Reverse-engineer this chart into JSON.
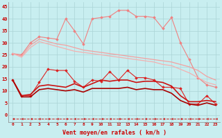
{
  "background_color": "#c8eef0",
  "grid_color": "#b0d8da",
  "xlabel": "Vent moyen/en rafales ( km/h )",
  "x_ticks": [
    0,
    1,
    2,
    3,
    4,
    5,
    6,
    7,
    8,
    9,
    10,
    11,
    12,
    13,
    14,
    15,
    16,
    17,
    18,
    19,
    20,
    21,
    22,
    23
  ],
  "ylim": [
    -3,
    47
  ],
  "yticks": [
    0,
    5,
    10,
    15,
    20,
    25,
    30,
    35,
    40,
    45
  ],
  "series": [
    {
      "label": "rafales_max",
      "color": "#f08080",
      "linewidth": 0.8,
      "marker": "D",
      "markersize": 1.8,
      "linestyle": "-",
      "values": [
        25.5,
        25.0,
        30.0,
        32.5,
        32.0,
        31.5,
        40.0,
        35.0,
        29.5,
        40.0,
        40.5,
        41.0,
        43.5,
        43.5,
        41.0,
        41.0,
        40.5,
        36.0,
        40.5,
        30.0,
        23.0,
        15.5,
        12.5,
        11.5
      ]
    },
    {
      "label": "rafales_mean_upper",
      "color": "#f4a0a0",
      "linewidth": 0.9,
      "marker": null,
      "markersize": 0,
      "linestyle": "-",
      "values": [
        25.5,
        24.5,
        29.0,
        31.5,
        30.5,
        29.5,
        29.0,
        28.0,
        27.0,
        26.5,
        26.0,
        25.5,
        25.0,
        24.5,
        24.0,
        23.5,
        23.0,
        22.5,
        22.0,
        21.0,
        20.0,
        18.5,
        16.0,
        14.5
      ]
    },
    {
      "label": "rafales_mean_lower",
      "color": "#f4b0b0",
      "linewidth": 0.9,
      "marker": null,
      "markersize": 0,
      "linestyle": "-",
      "values": [
        25.5,
        24.0,
        28.0,
        30.5,
        29.5,
        28.5,
        27.5,
        26.5,
        26.0,
        25.5,
        25.0,
        24.5,
        24.0,
        23.5,
        23.0,
        22.5,
        22.0,
        21.0,
        20.5,
        19.0,
        17.5,
        15.5,
        13.5,
        12.5
      ]
    },
    {
      "label": "vent_moyen_max",
      "color": "#dd2222",
      "linewidth": 0.8,
      "marker": "D",
      "markersize": 1.8,
      "linestyle": "-",
      "values": [
        14.5,
        8.0,
        8.0,
        13.5,
        19.0,
        18.5,
        18.5,
        14.0,
        11.5,
        14.5,
        14.0,
        18.0,
        14.5,
        18.5,
        15.5,
        15.5,
        14.5,
        11.5,
        11.5,
        11.0,
        4.5,
        4.5,
        8.0,
        4.5
      ]
    },
    {
      "label": "vent_moyen_mean",
      "color": "#cc1111",
      "linewidth": 1.2,
      "marker": null,
      "markersize": 0,
      "linestyle": "-",
      "values": [
        14.5,
        8.0,
        8.5,
        12.0,
        12.5,
        12.0,
        11.5,
        13.0,
        11.5,
        13.0,
        14.5,
        14.0,
        14.5,
        14.5,
        13.5,
        14.0,
        14.0,
        13.5,
        12.0,
        8.0,
        5.5,
        5.5,
        6.0,
        5.5
      ]
    },
    {
      "label": "vent_moyen_lower",
      "color": "#aa0000",
      "linewidth": 1.2,
      "marker": null,
      "markersize": 0,
      "linestyle": "-",
      "values": [
        14.5,
        7.5,
        7.5,
        10.5,
        11.0,
        10.5,
        10.0,
        10.5,
        9.5,
        11.0,
        11.0,
        11.0,
        11.0,
        11.5,
        10.5,
        11.0,
        10.5,
        10.5,
        9.0,
        6.0,
        4.5,
        4.0,
        5.0,
        4.0
      ]
    },
    {
      "label": "dashed_bottom",
      "color": "#cc2222",
      "linewidth": 0.7,
      "marker": 4,
      "markersize": 2.0,
      "linestyle": "--",
      "values": [
        -1.5,
        -1.5,
        -1.5,
        -1.5,
        -1.5,
        -1.5,
        -1.5,
        -1.5,
        -1.5,
        -1.5,
        -1.5,
        -1.5,
        -1.5,
        -1.5,
        -1.5,
        -1.5,
        -1.5,
        -1.5,
        -1.5,
        -1.5,
        -1.5,
        -1.5,
        -1.5,
        -1.5
      ]
    }
  ]
}
